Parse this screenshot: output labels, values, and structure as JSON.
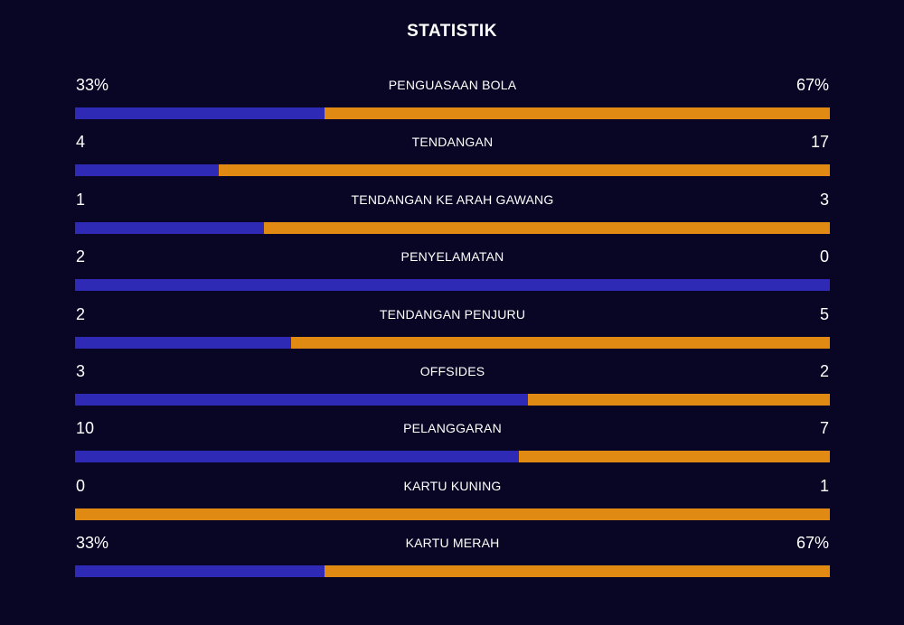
{
  "title": "STATISTIK",
  "colors": {
    "background": "#080624",
    "home": "#2f2ab5",
    "away": "#e08a14"
  },
  "stats": [
    {
      "label": "PENGUASAAN BOLA",
      "home": "33%",
      "away": "67%",
      "home_share": 0.33
    },
    {
      "label": "TENDANGAN",
      "home": "4",
      "away": "17",
      "home_share": 0.19
    },
    {
      "label": "TENDANGAN KE ARAH GAWANG",
      "home": "1",
      "away": "3",
      "home_share": 0.25
    },
    {
      "label": "PENYELAMATAN",
      "home": "2",
      "away": "0",
      "home_share": 1.0
    },
    {
      "label": "TENDANGAN PENJURU",
      "home": "2",
      "away": "5",
      "home_share": 0.286
    },
    {
      "label": "OFFSIDES",
      "home": "3",
      "away": "2",
      "home_share": 0.6
    },
    {
      "label": "PELANGGARAN",
      "home": "10",
      "away": "7",
      "home_share": 0.588
    },
    {
      "label": "KARTU KUNING",
      "home": "0",
      "away": "1",
      "home_share": 0.0
    },
    {
      "label": "KARTU MERAH",
      "home": "33%",
      "away": "67%",
      "home_share": 0.33
    }
  ]
}
